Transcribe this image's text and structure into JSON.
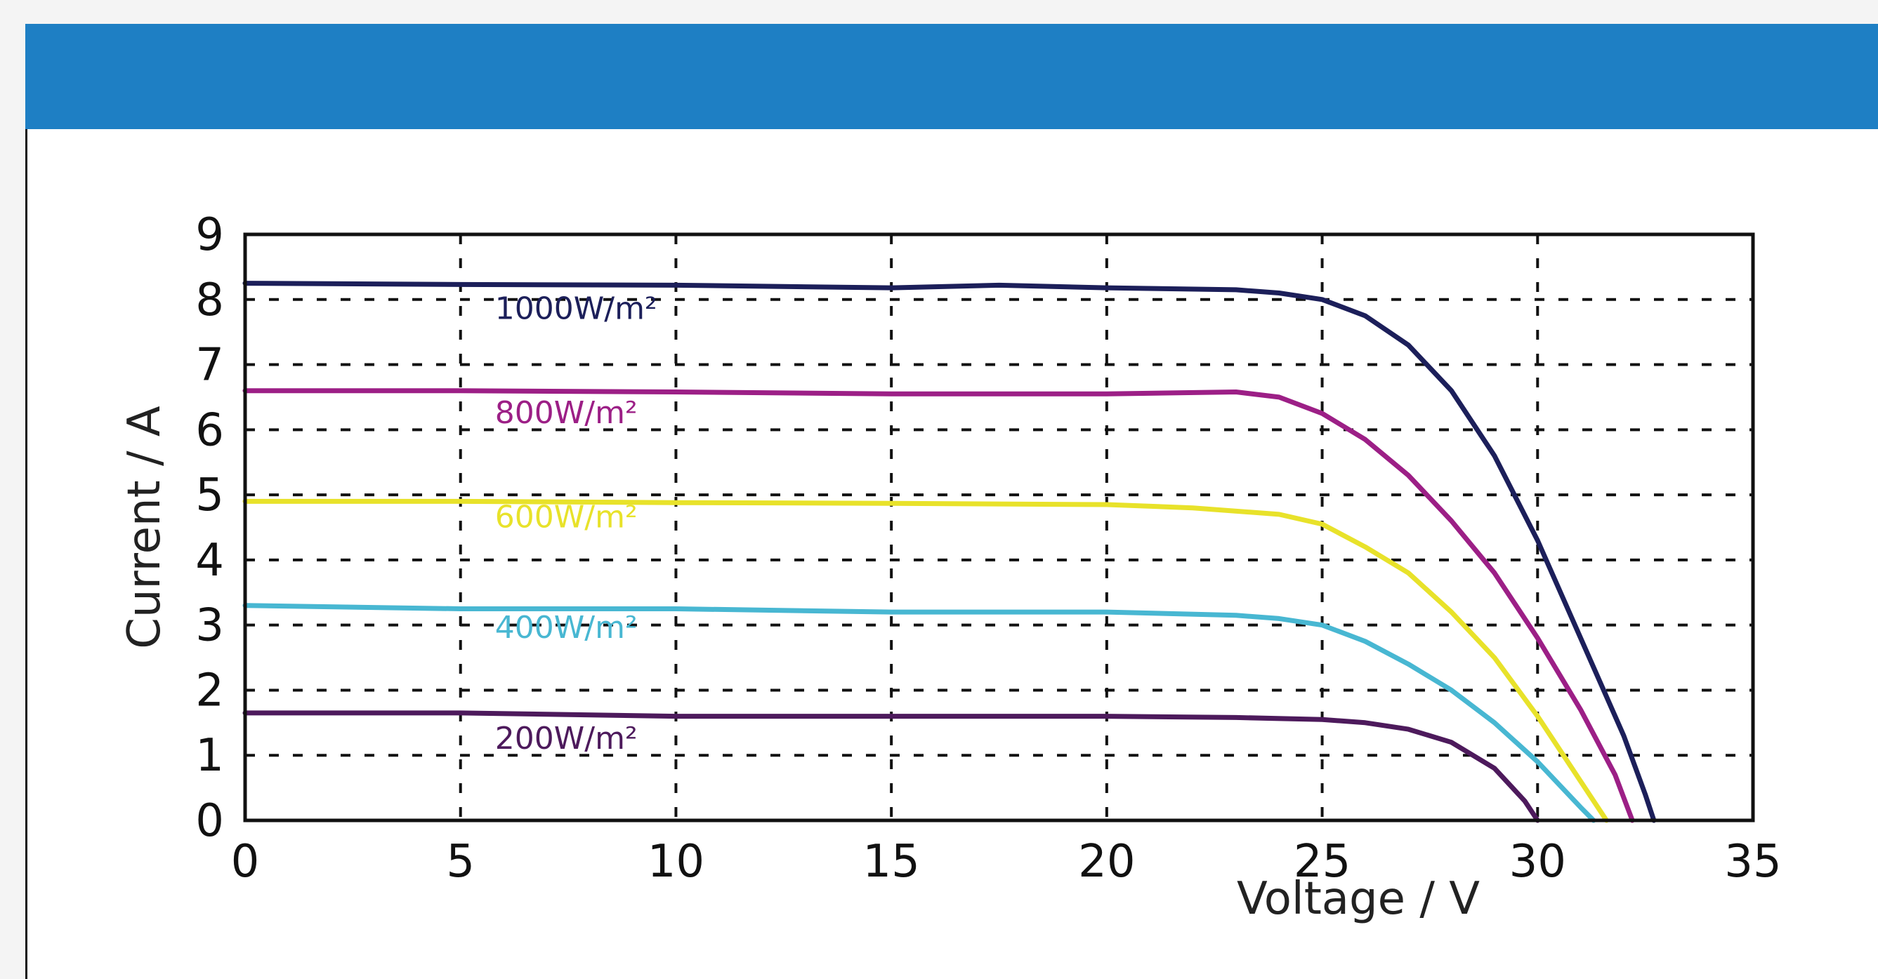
{
  "theme": {
    "header_color": "#1e7fc4"
  },
  "chart_data": {
    "type": "line",
    "title": "",
    "xlabel": "Voltage / V",
    "ylabel": "Current / A",
    "xlim": [
      0,
      35
    ],
    "ylim": [
      0,
      9
    ],
    "x_ticks": [
      "0",
      "5",
      "10",
      "15",
      "20",
      "25",
      "30",
      "35"
    ],
    "y_ticks": [
      "0",
      "1",
      "2",
      "3",
      "4",
      "5",
      "6",
      "7",
      "8",
      "9"
    ],
    "grid": true,
    "grid_style": "dashed",
    "series": [
      {
        "name": "1000W/m²",
        "color": "#1c1f5a",
        "label_pos": [
          5.8,
          7.7
        ],
        "points": [
          [
            0,
            8.25
          ],
          [
            5,
            8.23
          ],
          [
            10,
            8.22
          ],
          [
            15,
            8.18
          ],
          [
            17.5,
            8.22
          ],
          [
            20,
            8.18
          ],
          [
            23,
            8.15
          ],
          [
            24,
            8.1
          ],
          [
            25,
            8.0
          ],
          [
            26,
            7.75
          ],
          [
            27,
            7.3
          ],
          [
            28,
            6.6
          ],
          [
            29,
            5.6
          ],
          [
            30,
            4.3
          ],
          [
            31,
            2.8
          ],
          [
            32,
            1.3
          ],
          [
            32.5,
            0.4
          ],
          [
            32.7,
            0
          ]
        ]
      },
      {
        "name": "800W/m²",
        "color": "#9c1f86",
        "label_pos": [
          5.8,
          6.1
        ],
        "points": [
          [
            0,
            6.6
          ],
          [
            5,
            6.6
          ],
          [
            10,
            6.58
          ],
          [
            15,
            6.55
          ],
          [
            20,
            6.55
          ],
          [
            23,
            6.58
          ],
          [
            24,
            6.5
          ],
          [
            25,
            6.25
          ],
          [
            26,
            5.85
          ],
          [
            27,
            5.3
          ],
          [
            28,
            4.6
          ],
          [
            29,
            3.8
          ],
          [
            30,
            2.8
          ],
          [
            31,
            1.7
          ],
          [
            31.8,
            0.7
          ],
          [
            32.2,
            0
          ]
        ]
      },
      {
        "name": "600W/m²",
        "color": "#e8e22a",
        "label_pos": [
          5.8,
          4.5
        ],
        "points": [
          [
            0,
            4.9
          ],
          [
            5,
            4.9
          ],
          [
            10,
            4.88
          ],
          [
            15,
            4.87
          ],
          [
            20,
            4.85
          ],
          [
            22,
            4.8
          ],
          [
            24,
            4.7
          ],
          [
            25,
            4.55
          ],
          [
            26,
            4.2
          ],
          [
            27,
            3.8
          ],
          [
            28,
            3.2
          ],
          [
            29,
            2.5
          ],
          [
            30,
            1.6
          ],
          [
            31,
            0.6
          ],
          [
            31.6,
            0
          ]
        ]
      },
      {
        "name": "400W/m²",
        "color": "#48b7d2",
        "label_pos": [
          5.8,
          2.8
        ],
        "points": [
          [
            0,
            3.3
          ],
          [
            5,
            3.25
          ],
          [
            10,
            3.25
          ],
          [
            15,
            3.2
          ],
          [
            20,
            3.2
          ],
          [
            23,
            3.15
          ],
          [
            24,
            3.1
          ],
          [
            25,
            3.0
          ],
          [
            26,
            2.75
          ],
          [
            27,
            2.4
          ],
          [
            28,
            2.0
          ],
          [
            29,
            1.5
          ],
          [
            30,
            0.9
          ],
          [
            31,
            0.2
          ],
          [
            31.3,
            0
          ]
        ]
      },
      {
        "name": "200W/m²",
        "color": "#4d1a5c",
        "label_pos": [
          5.8,
          1.1
        ],
        "points": [
          [
            0,
            1.65
          ],
          [
            5,
            1.65
          ],
          [
            10,
            1.6
          ],
          [
            15,
            1.6
          ],
          [
            20,
            1.6
          ],
          [
            23,
            1.58
          ],
          [
            25,
            1.55
          ],
          [
            26,
            1.5
          ],
          [
            27,
            1.4
          ],
          [
            28,
            1.2
          ],
          [
            29,
            0.8
          ],
          [
            29.7,
            0.3
          ],
          [
            30,
            0
          ]
        ]
      }
    ]
  }
}
